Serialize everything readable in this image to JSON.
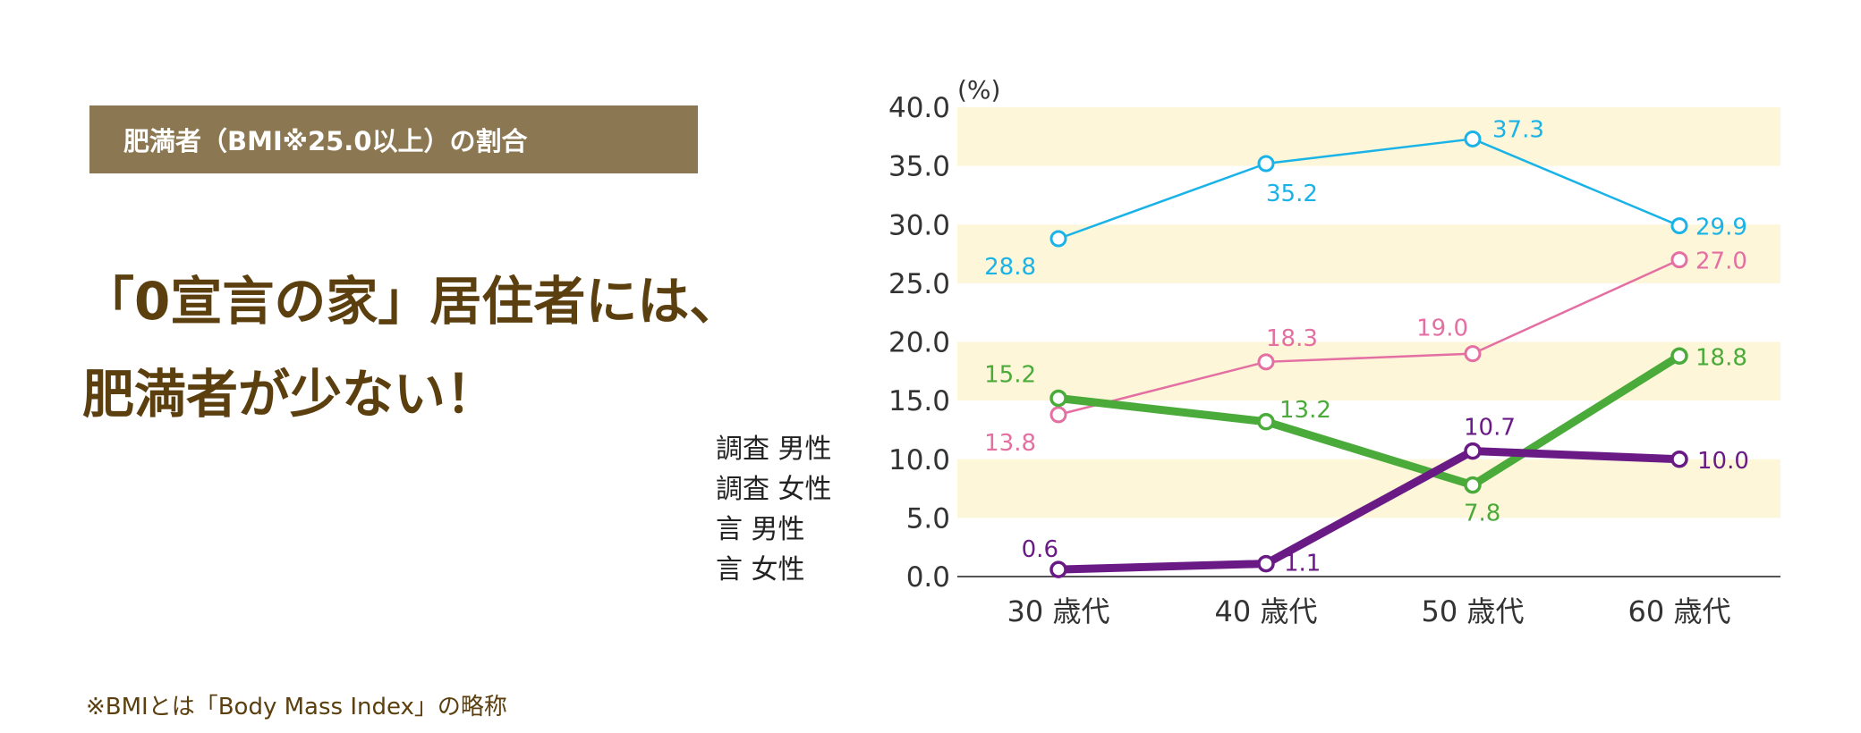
{
  "header": {
    "tag_label": "肥満者（BMI※25.0以上）の割合",
    "headline_line1": "「0宣言の家」居住者には、",
    "headline_line2": "肥満者が少ない！",
    "footnote": "※BMIとは「Body Mass Index」の略称"
  },
  "legend": [
    "調査 男性",
    "調査 女性",
    "言 男性",
    "言 女性"
  ],
  "chart_data": {
    "type": "line",
    "unit_label": "(%)",
    "categories": [
      "30 歳代",
      "40 歳代",
      "50 歳代",
      "60 歳代"
    ],
    "ylim": [
      0,
      40
    ],
    "y_ticks": [
      "0.0",
      "5.0",
      "10.0",
      "15.0",
      "20.0",
      "25.0",
      "30.0",
      "35.0",
      "40.0"
    ],
    "grid": "alternating horizontal bands",
    "series": [
      {
        "values": [
          28.8,
          35.2,
          37.3,
          29.9
        ],
        "labels": [
          "28.8",
          "35.2",
          "37.3",
          "29.9"
        ],
        "color": "#1ab3e8",
        "weight": "thin"
      },
      {
        "values": [
          13.8,
          18.3,
          19.0,
          27.0
        ],
        "labels": [
          "13.8",
          "18.3",
          "19.0",
          "27.0"
        ],
        "color": "#e46fa2",
        "weight": "thin"
      },
      {
        "values": [
          15.2,
          13.2,
          7.8,
          18.8
        ],
        "labels": [
          "15.2",
          "13.2",
          "7.8",
          "18.8"
        ],
        "color": "#4aab3a",
        "weight": "thick"
      },
      {
        "values": [
          0.6,
          1.1,
          10.7,
          10.0
        ],
        "labels": [
          "0.6",
          "1.1",
          "10.7",
          "10.0"
        ],
        "color": "#6a1a85",
        "weight": "thick"
      }
    ]
  }
}
